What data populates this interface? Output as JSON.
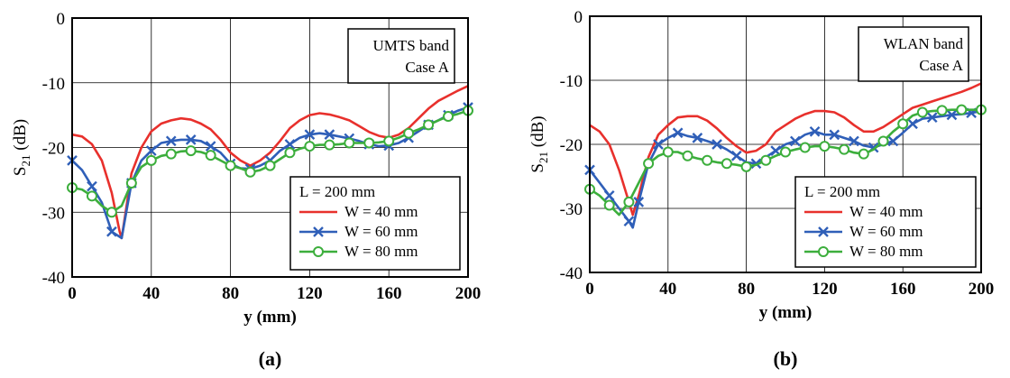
{
  "figure": {
    "panels": [
      "(a)",
      "(b)"
    ]
  },
  "colors": {
    "W40": "#e8302c",
    "W60": "#2f5fb8",
    "W80": "#3cae3c",
    "grid": "#000000",
    "box": "#000000"
  },
  "chart_data": [
    {
      "type": "line",
      "panel_label": "(a)",
      "xlabel": "y (mm)",
      "ylabel_main": "S",
      "ylabel_sub": "21",
      "ylabel_unit": " (dB)",
      "xlim": [
        0,
        200
      ],
      "ylim": [
        -40,
        0
      ],
      "xticks": [
        0,
        40,
        80,
        120,
        160,
        200
      ],
      "yticks": [
        0,
        -10,
        -20,
        -30,
        -40
      ],
      "grid": true,
      "annotation": [
        "UMTS band",
        "Case A"
      ],
      "annotation_position": "top-right",
      "legend_title": "L = 200 mm",
      "legend_position": "bottom-right",
      "series": [
        {
          "name": "W = 40 mm",
          "color_key": "W40",
          "marker": "none",
          "x": [
            0,
            5,
            10,
            15,
            20,
            24,
            25,
            27,
            30,
            35,
            40,
            45,
            50,
            55,
            60,
            65,
            70,
            75,
            80,
            85,
            90,
            95,
            100,
            105,
            110,
            115,
            120,
            125,
            130,
            135,
            140,
            145,
            150,
            155,
            160,
            165,
            170,
            175,
            180,
            185,
            190,
            195,
            200
          ],
          "y": [
            -18,
            -18.3,
            -19.5,
            -22,
            -27,
            -33,
            -34,
            -30,
            -24,
            -20,
            -17.5,
            -16.3,
            -15.8,
            -15.5,
            -15.7,
            -16.3,
            -17.2,
            -18.8,
            -20.8,
            -22,
            -22.8,
            -22,
            -20.8,
            -19,
            -17,
            -15.8,
            -15,
            -14.7,
            -14.9,
            -15.3,
            -15.8,
            -16.7,
            -17.6,
            -18.2,
            -18.5,
            -18,
            -17,
            -15.5,
            -14,
            -12.8,
            -12,
            -11.2,
            -10.5
          ]
        },
        {
          "name": "W = 60 mm",
          "color_key": "W60",
          "marker": "x",
          "x": [
            0,
            5,
            10,
            15,
            20,
            25,
            30,
            35,
            40,
            45,
            50,
            55,
            60,
            65,
            70,
            75,
            80,
            85,
            90,
            95,
            100,
            105,
            110,
            115,
            120,
            125,
            130,
            135,
            140,
            145,
            150,
            155,
            160,
            165,
            170,
            175,
            180,
            185,
            190,
            195,
            200
          ],
          "y": [
            -22,
            -23.5,
            -26,
            -28.5,
            -33,
            -34,
            -25.5,
            -22,
            -20.5,
            -19.3,
            -19,
            -18.8,
            -18.8,
            -19,
            -19.8,
            -20.8,
            -22.5,
            -23.2,
            -23.3,
            -22.8,
            -22,
            -20.5,
            -19.5,
            -18.5,
            -18,
            -17.8,
            -18,
            -18.3,
            -18.6,
            -19,
            -19.5,
            -19.8,
            -19.7,
            -19.3,
            -18.5,
            -17.5,
            -16.5,
            -15.8,
            -15,
            -14.3,
            -13.8
          ]
        },
        {
          "name": "W = 80 mm",
          "color_key": "W80",
          "marker": "circle",
          "x": [
            0,
            5,
            10,
            15,
            20,
            25,
            30,
            35,
            40,
            45,
            50,
            55,
            60,
            65,
            70,
            75,
            80,
            85,
            90,
            95,
            100,
            105,
            110,
            115,
            120,
            125,
            130,
            135,
            140,
            145,
            150,
            155,
            160,
            165,
            170,
            175,
            180,
            185,
            190,
            195,
            200
          ],
          "y": [
            -26.2,
            -26.5,
            -27.5,
            -29,
            -30,
            -29,
            -25.5,
            -23,
            -22,
            -21.3,
            -21,
            -20.6,
            -20.5,
            -20.7,
            -21.2,
            -22,
            -22.8,
            -23.2,
            -23.8,
            -23.5,
            -22.8,
            -21.8,
            -20.8,
            -20.2,
            -19.8,
            -19.6,
            -19.6,
            -19.5,
            -19.3,
            -19.3,
            -19.3,
            -19.2,
            -19,
            -18.5,
            -17.8,
            -17.2,
            -16.5,
            -15.8,
            -15.2,
            -14.8,
            -14.3
          ]
        }
      ]
    },
    {
      "type": "line",
      "panel_label": "(b)",
      "xlabel": "y (mm)",
      "ylabel_main": "S",
      "ylabel_sub": "21",
      "ylabel_unit": " (dB)",
      "xlim": [
        0,
        200
      ],
      "ylim": [
        -40,
        0
      ],
      "xticks": [
        0,
        40,
        80,
        120,
        160,
        200
      ],
      "yticks": [
        0,
        -10,
        -20,
        -30,
        -40
      ],
      "grid": true,
      "annotation": [
        "WLAN band",
        "Case A"
      ],
      "annotation_position": "top-right",
      "legend_title": "L = 200 mm",
      "legend_position": "bottom-right",
      "series": [
        {
          "name": "W = 40 mm",
          "color_key": "W40",
          "marker": "none",
          "x": [
            0,
            5,
            10,
            15,
            20,
            22,
            25,
            30,
            35,
            40,
            45,
            50,
            55,
            60,
            65,
            70,
            75,
            80,
            85,
            90,
            95,
            100,
            105,
            110,
            115,
            120,
            125,
            130,
            135,
            140,
            145,
            150,
            155,
            160,
            165,
            170,
            175,
            180,
            185,
            190,
            195,
            200
          ],
          "y": [
            -17,
            -18,
            -20,
            -24,
            -29,
            -31,
            -28,
            -22,
            -18.5,
            -17,
            -15.8,
            -15.6,
            -15.6,
            -16.3,
            -17.5,
            -19,
            -20.3,
            -21.3,
            -21,
            -20,
            -18,
            -17,
            -16,
            -15.3,
            -14.8,
            -14.8,
            -15,
            -15.8,
            -17,
            -18,
            -18,
            -17.3,
            -16.3,
            -15.3,
            -14.3,
            -13.8,
            -13.3,
            -12.8,
            -12.3,
            -11.8,
            -11.2,
            -10.5
          ]
        },
        {
          "name": "W = 60 mm",
          "color_key": "W60",
          "marker": "x",
          "x": [
            0,
            5,
            10,
            15,
            20,
            22,
            25,
            30,
            35,
            40,
            45,
            50,
            55,
            60,
            65,
            70,
            75,
            80,
            85,
            90,
            95,
            100,
            105,
            110,
            115,
            120,
            125,
            130,
            135,
            140,
            145,
            150,
            155,
            160,
            165,
            170,
            175,
            180,
            185,
            190,
            195,
            200
          ],
          "y": [
            -24,
            -26,
            -28,
            -30,
            -32,
            -33,
            -29,
            -23,
            -20,
            -19,
            -18.2,
            -18.7,
            -19,
            -19.5,
            -20,
            -20.8,
            -21.8,
            -22.8,
            -23,
            -22,
            -21,
            -20,
            -19.5,
            -18.5,
            -18,
            -18.5,
            -18.5,
            -19,
            -19.5,
            -20.2,
            -20.5,
            -20,
            -19.5,
            -18.2,
            -16.8,
            -16,
            -15.8,
            -15.6,
            -15.4,
            -15.3,
            -15.1,
            -14.8
          ]
        },
        {
          "name": "W = 80 mm",
          "color_key": "W80",
          "marker": "circle",
          "x": [
            0,
            5,
            10,
            15,
            20,
            25,
            30,
            35,
            40,
            45,
            50,
            55,
            60,
            65,
            70,
            75,
            80,
            85,
            90,
            95,
            100,
            105,
            110,
            115,
            120,
            125,
            130,
            135,
            140,
            145,
            150,
            155,
            160,
            165,
            170,
            175,
            180,
            185,
            190,
            195,
            200
          ],
          "y": [
            -27,
            -28,
            -29.5,
            -31,
            -29,
            -26,
            -23,
            -21.8,
            -21.2,
            -21.2,
            -21.8,
            -22.2,
            -22.5,
            -22.8,
            -23,
            -23.2,
            -23.5,
            -23.2,
            -22.5,
            -21.8,
            -21.2,
            -20.8,
            -20.5,
            -20.3,
            -20.3,
            -20.5,
            -20.8,
            -21.3,
            -21.5,
            -20.8,
            -19.5,
            -18,
            -16.8,
            -15.5,
            -15,
            -14.8,
            -14.7,
            -14.6,
            -14.6,
            -14.6,
            -14.6
          ]
        }
      ]
    }
  ]
}
